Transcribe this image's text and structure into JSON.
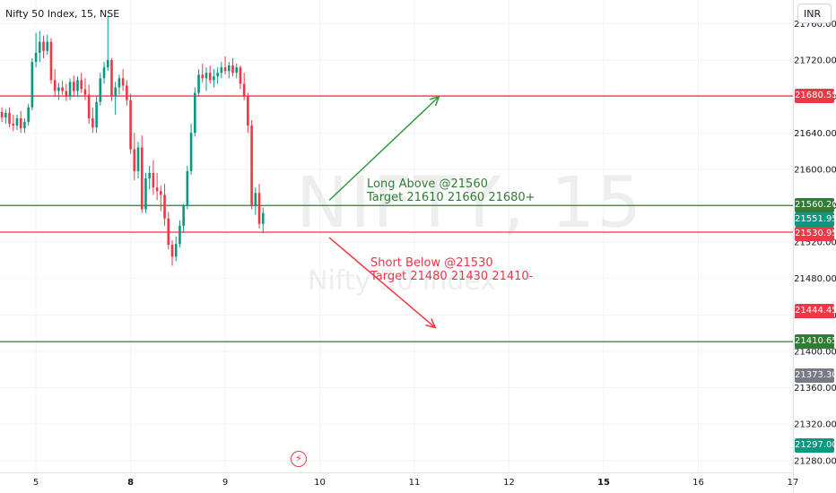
{
  "title": "Nifty 50 Index, 15, NSE",
  "currency": "INR",
  "watermark": {
    "symbol": "NIFTY, 15",
    "description": "Nifty 50 Index"
  },
  "annotations": {
    "long": [
      "Long Above @21560",
      "Target 21610 21660 21680+"
    ],
    "short": [
      "Short Below @21530",
      "Target 21480 21430 21410-"
    ]
  },
  "event_icon": "lightning-icon",
  "price_tags": [
    {
      "label": "21680.55",
      "value": 21680.55,
      "color": "#f23645"
    },
    {
      "label": "21560.20",
      "value": 21560.2,
      "color": "#2e7d32"
    },
    {
      "label": "21551.95",
      "value": 21551.95,
      "color": "#089981"
    },
    {
      "label": "21530.95",
      "value": 21530.95,
      "color": "#f23645"
    },
    {
      "label": "21444.45",
      "value": 21444.45,
      "color": "#f23645"
    },
    {
      "label": "21410.65",
      "value": 21410.65,
      "color": "#2e7d32"
    },
    {
      "label": "21373.30",
      "value": 21373.3,
      "color": "#787b86"
    },
    {
      "label": "21297.00",
      "value": 21297.0,
      "color": "#089981"
    }
  ],
  "chart_data": {
    "type": "candlestick",
    "title": "Nifty 50 Index, 15, NSE",
    "x_ticks": [
      {
        "label": "5",
        "pos": 0
      },
      {
        "label": "8",
        "pos": 25
      },
      {
        "label": "9",
        "pos": 50
      },
      {
        "label": "10",
        "pos": 75
      },
      {
        "label": "11",
        "pos": 100
      },
      {
        "label": "12",
        "pos": 125
      },
      {
        "label": "15",
        "pos": 150
      },
      {
        "label": "16",
        "pos": 175
      },
      {
        "label": "17",
        "pos": 200
      }
    ],
    "x_range": [
      -9.5,
      200
    ],
    "y_ticks": [
      21280,
      21320,
      21360,
      21400,
      21440,
      21480,
      21520,
      21560,
      21600,
      21640,
      21680,
      21720,
      21760
    ],
    "ylim": [
      21267,
      21786
    ],
    "horizontal_lines": [
      {
        "value": 21680.55,
        "color": "#f23645"
      },
      {
        "value": 21560.2,
        "color": "#2e7d32"
      },
      {
        "value": 21530.95,
        "color": "#f23645"
      },
      {
        "value": 21410.65,
        "color": "#2e7d32"
      }
    ],
    "arrows": [
      {
        "from": [
          77.5,
          21566
        ],
        "to": [
          106.5,
          21680
        ],
        "color": "#2e9a3e"
      },
      {
        "from": [
          77.5,
          21525
        ],
        "to": [
          105.5,
          21426
        ],
        "color": "#f23645"
      }
    ],
    "colors": {
      "up": "#089981",
      "down": "#f23645"
    },
    "candles": [
      [
        -9,
        21663,
        21668,
        21652,
        21657
      ],
      [
        -8,
        21657,
        21666,
        21650,
        21662
      ],
      [
        -7,
        21662,
        21668,
        21646,
        21650
      ],
      [
        -6,
        21650,
        21660,
        21642,
        21648
      ],
      [
        -5,
        21648,
        21660,
        21643,
        21656
      ],
      [
        -4,
        21656,
        21664,
        21640,
        21645
      ],
      [
        -3,
        21645,
        21656,
        21640,
        21652
      ],
      [
        -2,
        21652,
        21672,
        21648,
        21668
      ],
      [
        -1,
        21668,
        21722,
        21665,
        21718
      ],
      [
        0,
        21718,
        21750,
        21712,
        21728
      ],
      [
        1,
        21728,
        21752,
        21718,
        21740
      ],
      [
        2,
        21740,
        21747,
        21722,
        21730
      ],
      [
        3,
        21730,
        21748,
        21726,
        21740
      ],
      [
        4,
        21740,
        21744,
        21694,
        21698
      ],
      [
        5,
        21698,
        21710,
        21680,
        21686
      ],
      [
        6,
        21686,
        21695,
        21676,
        21690
      ],
      [
        7,
        21690,
        21697,
        21682,
        21686
      ],
      [
        8,
        21686,
        21694,
        21675,
        21680
      ],
      [
        9,
        21680,
        21700,
        21676,
        21696
      ],
      [
        10,
        21696,
        21703,
        21680,
        21686
      ],
      [
        11,
        21686,
        21702,
        21680,
        21698
      ],
      [
        12,
        21698,
        21706,
        21684,
        21688
      ],
      [
        13,
        21688,
        21700,
        21676,
        21682
      ],
      [
        14,
        21682,
        21693,
        21650,
        21656
      ],
      [
        15,
        21656,
        21668,
        21640,
        21646
      ],
      [
        16,
        21646,
        21680,
        21640,
        21674
      ],
      [
        17,
        21674,
        21706,
        21670,
        21700
      ],
      [
        18,
        21700,
        21718,
        21694,
        21712
      ],
      [
        19,
        21712,
        21768,
        21708,
        21720
      ],
      [
        20,
        21720,
        21722,
        21675,
        21680
      ],
      [
        21,
        21680,
        21696,
        21660,
        21690
      ],
      [
        22,
        21690,
        21704,
        21682,
        21700
      ],
      [
        23,
        21700,
        21710,
        21686,
        21692
      ],
      [
        24,
        21692,
        21698,
        21670,
        21676
      ],
      [
        25,
        21676,
        21683,
        21617,
        21622
      ],
      [
        26,
        21622,
        21640,
        21588,
        21598
      ],
      [
        27,
        21598,
        21630,
        21590,
        21624
      ],
      [
        28,
        21624,
        21637,
        21552,
        21556
      ],
      [
        29,
        21556,
        21596,
        21552,
        21590
      ],
      [
        30,
        21590,
        21604,
        21578,
        21596
      ],
      [
        31,
        21596,
        21610,
        21572,
        21580
      ],
      [
        32,
        21580,
        21596,
        21566,
        21576
      ],
      [
        33,
        21576,
        21582,
        21554,
        21572
      ],
      [
        34,
        21572,
        21584,
        21538,
        21546
      ],
      [
        35,
        21546,
        21553,
        21512,
        21517
      ],
      [
        36,
        21517,
        21522,
        21494,
        21504
      ],
      [
        37,
        21504,
        21526,
        21499,
        21518
      ],
      [
        38,
        21518,
        21544,
        21514,
        21538
      ],
      [
        39,
        21538,
        21562,
        21530,
        21560
      ],
      [
        40,
        21560,
        21604,
        21556,
        21598
      ],
      [
        41,
        21598,
        21650,
        21594,
        21640
      ],
      [
        42,
        21640,
        21690,
        21636,
        21684
      ],
      [
        43,
        21684,
        21710,
        21680,
        21704
      ],
      [
        44,
        21704,
        21716,
        21695,
        21700
      ],
      [
        45,
        21700,
        21712,
        21686,
        21706
      ],
      [
        46,
        21706,
        21714,
        21694,
        21698
      ],
      [
        47,
        21698,
        21710,
        21690,
        21702
      ],
      [
        48,
        21702,
        21712,
        21694,
        21706
      ],
      [
        49,
        21706,
        21718,
        21700,
        21712
      ],
      [
        50,
        21712,
        21724,
        21704,
        21708
      ],
      [
        51,
        21708,
        21718,
        21700,
        21714
      ],
      [
        52,
        21714,
        21722,
        21702,
        21706
      ],
      [
        53,
        21706,
        21716,
        21700,
        21712
      ],
      [
        54,
        21712,
        21714,
        21688,
        21694
      ],
      [
        55,
        21694,
        21706,
        21676,
        21680
      ],
      [
        56,
        21680,
        21684,
        21640,
        21648
      ],
      [
        57,
        21648,
        21654,
        21556,
        21560
      ],
      [
        58,
        21560,
        21580,
        21550,
        21574
      ],
      [
        59,
        21574,
        21584,
        21535,
        21540
      ],
      [
        60,
        21540,
        21558,
        21530,
        21552
      ]
    ]
  }
}
